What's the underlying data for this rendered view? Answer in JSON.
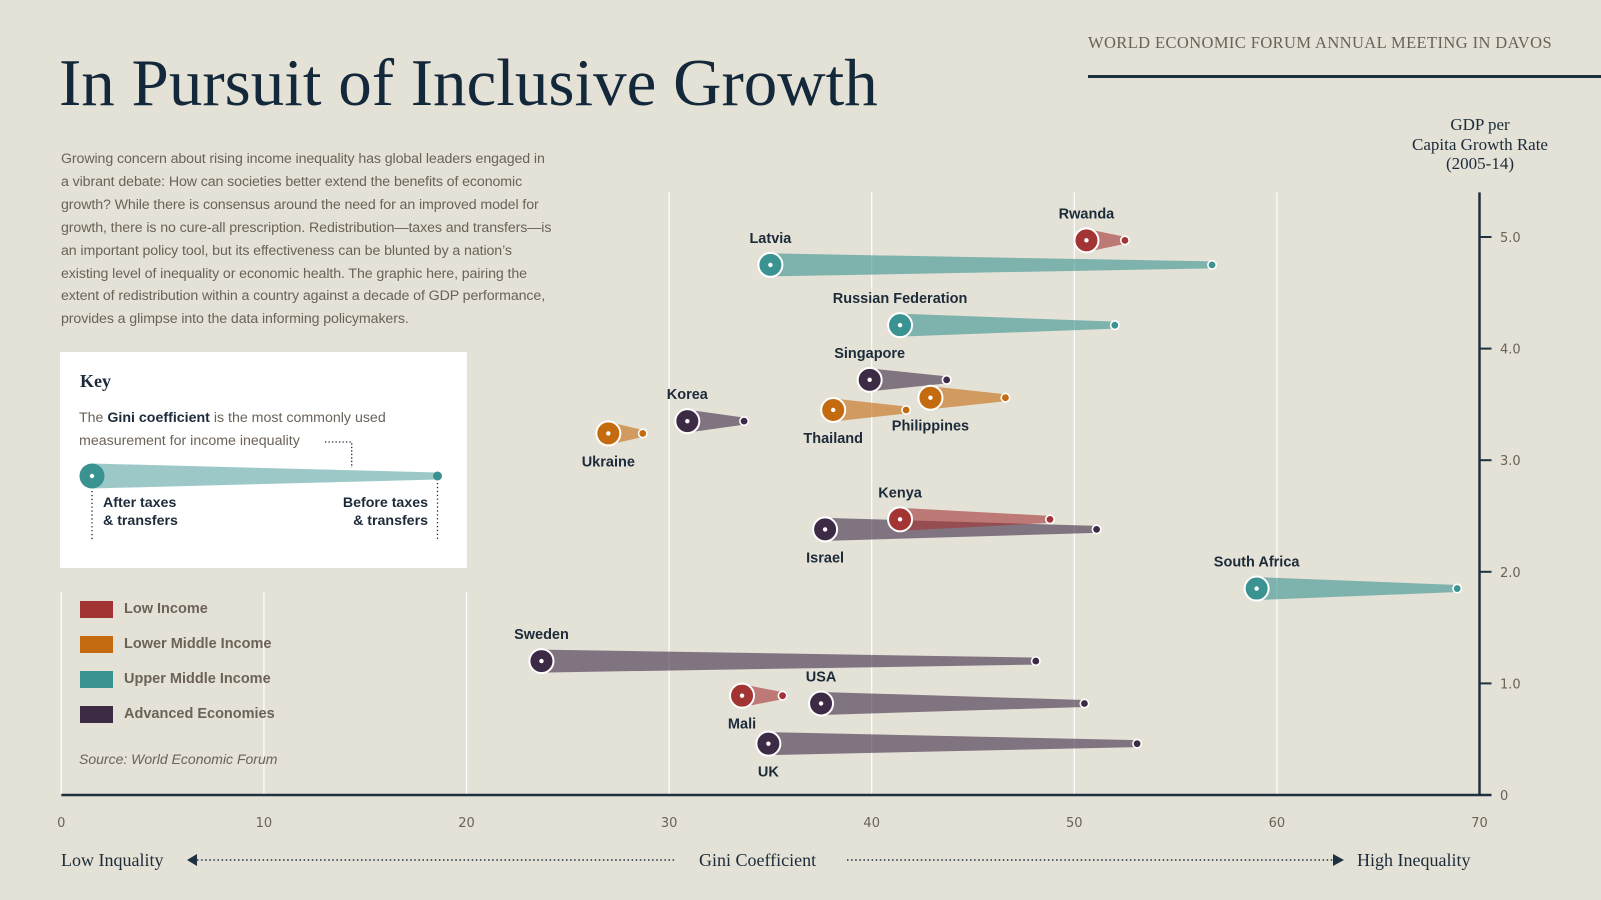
{
  "header": {
    "event": "WORLD ECONOMIC FORUM ANNUAL MEETING IN DAVOS"
  },
  "title": "In Pursuit of Inclusive Growth",
  "intro_lines": [
    "Growing concern about rising income inequality has global leaders engaged in",
    "a vibrant debate: How can societies better extend the benefits of economic",
    "growth? While there is consensus around the need for an improved model for",
    "growth, there is no cure-all prescription. Redistribution—taxes and transfers—is",
    "an important policy tool, but its effectiveness can be blunted by a nation’s",
    "existing level of inequality or economic health. The graphic here, pairing the",
    "extent of redistribution within a country against a decade of GDP performance,",
    "provides a glimpse into the data informing policymakers."
  ],
  "key": {
    "heading": "Key",
    "text_prefix": "The ",
    "text_bold": "Gini coefficient",
    "text_suffix": " is the most commonly used",
    "text_line2": "measurement for income inequality",
    "after_label": [
      "After taxes",
      "& transfers"
    ],
    "before_label": [
      "Before taxes",
      "& transfers"
    ],
    "example_color": "#3a9391"
  },
  "legend": [
    {
      "label": "Low Income",
      "color": "#a33434"
    },
    {
      "label": "Lower Middle Income",
      "color": "#c46a0f"
    },
    {
      "label": "Upper Middle Income",
      "color": "#3a9391"
    },
    {
      "label": "Advanced Economies",
      "color": "#3d2b46"
    }
  ],
  "source": "Source: World Economic Forum",
  "chart_data": {
    "type": "scatter",
    "title": "In Pursuit of Inclusive Growth",
    "xlabel": "Gini Coefficient",
    "ylabel_lines": [
      "GDP per",
      "Capita Growth Rate",
      "(2005-14)"
    ],
    "x_axis_left_label": "Low Inquality",
    "x_axis_right_label": "High Inequality",
    "xlim": [
      0,
      70
    ],
    "ylim": [
      0,
      5.4
    ],
    "x_ticks": [
      0,
      10,
      20,
      30,
      40,
      50,
      60,
      70
    ],
    "x_tick_labels": [
      "0",
      "10",
      "20",
      "30",
      "40",
      "50",
      "60",
      "70"
    ],
    "y_ticks": [
      0,
      1,
      2,
      3,
      4,
      5
    ],
    "y_tick_labels": [
      "0",
      "1.0",
      "2.0",
      "3.0",
      "4.0",
      "5.0"
    ],
    "grid": true,
    "marker_meaning": {
      "large_circle": "Gini after taxes & transfers",
      "small_dot": "Gini before taxes & transfers"
    },
    "categories": {
      "low": {
        "name": "Low Income",
        "color": "#a33434"
      },
      "lower_middle": {
        "name": "Lower Middle Income",
        "color": "#c46a0f"
      },
      "upper_middle": {
        "name": "Upper Middle Income",
        "color": "#3a9391"
      },
      "advanced": {
        "name": "Advanced Economies",
        "color": "#3d2b46"
      }
    },
    "points": [
      {
        "country": "Rwanda",
        "category": "low",
        "gini_after": 50.6,
        "gini_before": 52.5,
        "growth": 4.97,
        "label_pos": "above"
      },
      {
        "country": "Latvia",
        "category": "upper_middle",
        "gini_after": 35.0,
        "gini_before": 56.8,
        "growth": 4.75,
        "label_pos": "above"
      },
      {
        "country": "Russian Federation",
        "category": "upper_middle",
        "gini_after": 41.4,
        "gini_before": 52.0,
        "growth": 4.21,
        "label_pos": "above"
      },
      {
        "country": "Singapore",
        "category": "advanced",
        "gini_after": 39.9,
        "gini_before": 43.7,
        "growth": 3.72,
        "label_pos": "above"
      },
      {
        "country": "Philippines",
        "category": "lower_middle",
        "gini_after": 42.9,
        "gini_before": 46.6,
        "growth": 3.56,
        "label_pos": "below"
      },
      {
        "country": "Thailand",
        "category": "lower_middle",
        "gini_after": 38.1,
        "gini_before": 41.7,
        "growth": 3.45,
        "label_pos": "below"
      },
      {
        "country": "Korea",
        "category": "advanced",
        "gini_after": 30.9,
        "gini_before": 33.7,
        "growth": 3.35,
        "label_pos": "above"
      },
      {
        "country": "Ukraine",
        "category": "lower_middle",
        "gini_after": 27.0,
        "gini_before": 28.7,
        "growth": 3.24,
        "label_pos": "below"
      },
      {
        "country": "Israel",
        "category": "advanced",
        "gini_after": 37.7,
        "gini_before": 51.1,
        "growth": 2.38,
        "label_pos": "below"
      },
      {
        "country": "Kenya",
        "category": "low",
        "gini_after": 41.4,
        "gini_before": 48.8,
        "growth": 2.47,
        "label_pos": "above"
      },
      {
        "country": "South Africa",
        "category": "upper_middle",
        "gini_after": 59.0,
        "gini_before": 68.9,
        "growth": 1.85,
        "label_pos": "above"
      },
      {
        "country": "Sweden",
        "category": "advanced",
        "gini_after": 23.7,
        "gini_before": 48.1,
        "growth": 1.2,
        "label_pos": "above"
      },
      {
        "country": "Mali",
        "category": "low",
        "gini_after": 33.6,
        "gini_before": 35.6,
        "growth": 0.89,
        "label_pos": "below"
      },
      {
        "country": "USA",
        "category": "advanced",
        "gini_after": 37.5,
        "gini_before": 50.5,
        "growth": 0.82,
        "label_pos": "above"
      },
      {
        "country": "UK",
        "category": "advanced",
        "gini_after": 34.9,
        "gini_before": 53.1,
        "growth": 0.46,
        "label_pos": "below"
      }
    ]
  }
}
